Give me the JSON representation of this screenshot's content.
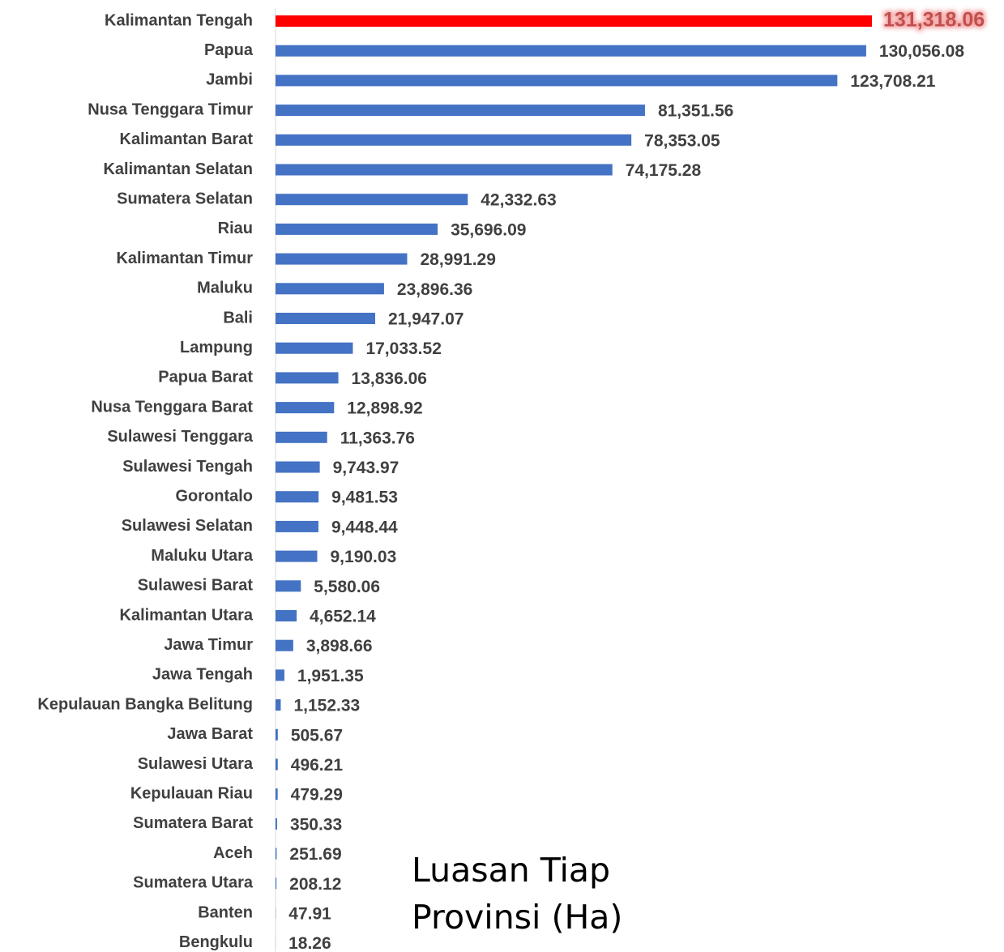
{
  "chart_data": {
    "type": "bar",
    "orientation": "horizontal",
    "title": "Luasan Tiap Provinsi (Ha)",
    "categories": [
      "Kalimantan Tengah",
      "Papua",
      "Jambi",
      "Nusa Tenggara Timur",
      "Kalimantan Barat",
      "Kalimantan Selatan",
      "Sumatera Selatan",
      "Riau",
      "Kalimantan Timur",
      "Maluku",
      "Bali",
      "Lampung",
      "Papua Barat",
      "Nusa Tenggara Barat",
      "Sulawesi Tenggara",
      "Sulawesi Tengah",
      "Gorontalo",
      "Sulawesi Selatan",
      "Maluku Utara",
      "Sulawesi Barat",
      "Kalimantan Utara",
      "Jawa Timur",
      "Jawa Tengah",
      "Kepulauan Bangka Belitung",
      "Jawa Barat",
      "Sulawesi Utara",
      "Kepulauan Riau",
      "Sumatera Barat",
      "Aceh",
      "Sumatera Utara",
      "Banten",
      "Bengkulu"
    ],
    "values": [
      131318.06,
      130056.08,
      123708.21,
      81351.56,
      78353.05,
      74175.28,
      42332.63,
      35696.09,
      28991.29,
      23896.36,
      21947.07,
      17033.52,
      13836.06,
      12898.92,
      11363.76,
      9743.97,
      9481.53,
      9448.44,
      9190.03,
      5580.06,
      4652.14,
      3898.66,
      1951.35,
      1152.33,
      505.67,
      496.21,
      479.29,
      350.33,
      251.69,
      208.12,
      47.91,
      18.26
    ],
    "value_labels": [
      "131,318.06",
      "130,056.08",
      "123,708.21",
      "81,351.56",
      "78,353.05",
      "74,175.28",
      "42,332.63",
      "35,696.09",
      "28,991.29",
      "23,896.36",
      "21,947.07",
      "17,033.52",
      "13,836.06",
      "12,898.92",
      "11,363.76",
      "9,743.97",
      "9,481.53",
      "9,448.44",
      "9,190.03",
      "5,580.06",
      "4,652.14",
      "3,898.66",
      "1,951.35",
      "1,152.33",
      "505.67",
      "496.21",
      "479.29",
      "350.33",
      "251.69",
      "208.12",
      "47.91",
      "18.26"
    ],
    "colors": [
      "#ff0000",
      "#4472c4",
      "#4472c4",
      "#4472c4",
      "#4472c4",
      "#4472c4",
      "#4472c4",
      "#4472c4",
      "#4472c4",
      "#4472c4",
      "#4472c4",
      "#4472c4",
      "#4472c4",
      "#4472c4",
      "#4472c4",
      "#4472c4",
      "#4472c4",
      "#4472c4",
      "#4472c4",
      "#4472c4",
      "#4472c4",
      "#4472c4",
      "#4472c4",
      "#4472c4",
      "#4472c4",
      "#4472c4",
      "#4472c4",
      "#4472c4",
      "#4472c4",
      "#4472c4",
      "#4472c4",
      "#4472c4"
    ]
  }
}
